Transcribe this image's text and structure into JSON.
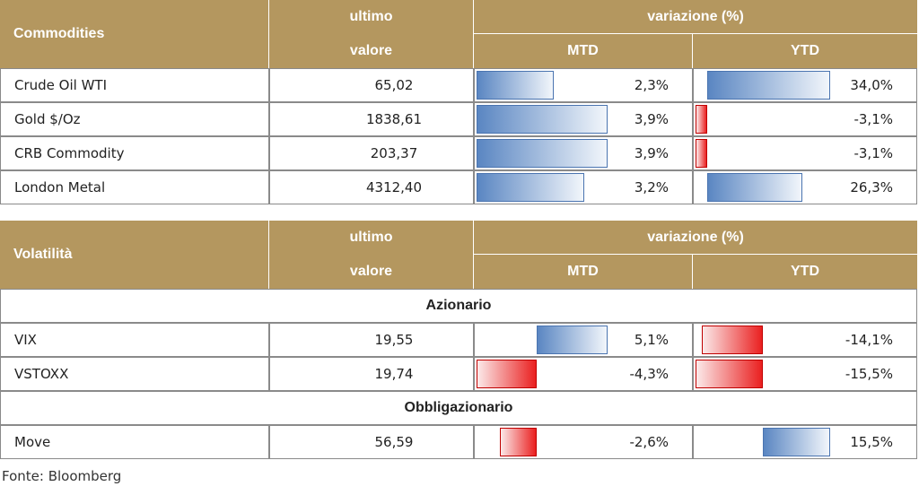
{
  "tables": [
    {
      "title": "Commodities",
      "headers": [
        "ultimo",
        "valore",
        "variazione (%)",
        "MTD",
        "YTD"
      ],
      "rows": [
        {
          "label": "Crude Oil WTI",
          "value": "65,02",
          "mtd": {
            "value": 2.3,
            "label": "2,3%"
          },
          "ytd": {
            "value": 34.0,
            "label": "34,0%"
          }
        },
        {
          "label": "Gold $/Oz",
          "value": "1838,61",
          "mtd": {
            "value": 3.9,
            "label": "3,9%"
          },
          "ytd": {
            "value": -3.1,
            "label": "-3,1%"
          }
        },
        {
          "label": "CRB Commodity",
          "value": "203,37",
          "mtd": {
            "value": 3.9,
            "label": "3,9%"
          },
          "ytd": {
            "value": -3.1,
            "label": "-3,1%"
          }
        },
        {
          "label": "London Metal",
          "value": "4312,40",
          "mtd": {
            "value": 3.2,
            "label": "3,2%"
          },
          "ytd": {
            "value": 26.3,
            "label": "26,3%"
          }
        }
      ]
    },
    {
      "title": "Volatilità",
      "headers": [
        "ultimo",
        "valore",
        "variazione (%)",
        "MTD",
        "YTD"
      ],
      "rows": [
        {
          "section": "Azionario"
        },
        {
          "label": "VIX",
          "value": "19,55",
          "mtd": {
            "value": 5.1,
            "label": "5,1%"
          },
          "ytd": {
            "value": -14.1,
            "label": "-14,1%"
          }
        },
        {
          "label": "VSTOXX",
          "value": "19,74",
          "mtd": {
            "value": -4.3,
            "label": "-4,3%"
          },
          "ytd": {
            "value": -15.5,
            "label": "-15,5%"
          }
        },
        {
          "section": "Obbligazionario"
        },
        {
          "label": "Move",
          "value": "56,59",
          "mtd": {
            "value": -2.6,
            "label": "-2,6%"
          },
          "ytd": {
            "value": 15.5,
            "label": "15,5%"
          }
        }
      ]
    }
  ],
  "footer": "Fonte: Bloomberg"
}
